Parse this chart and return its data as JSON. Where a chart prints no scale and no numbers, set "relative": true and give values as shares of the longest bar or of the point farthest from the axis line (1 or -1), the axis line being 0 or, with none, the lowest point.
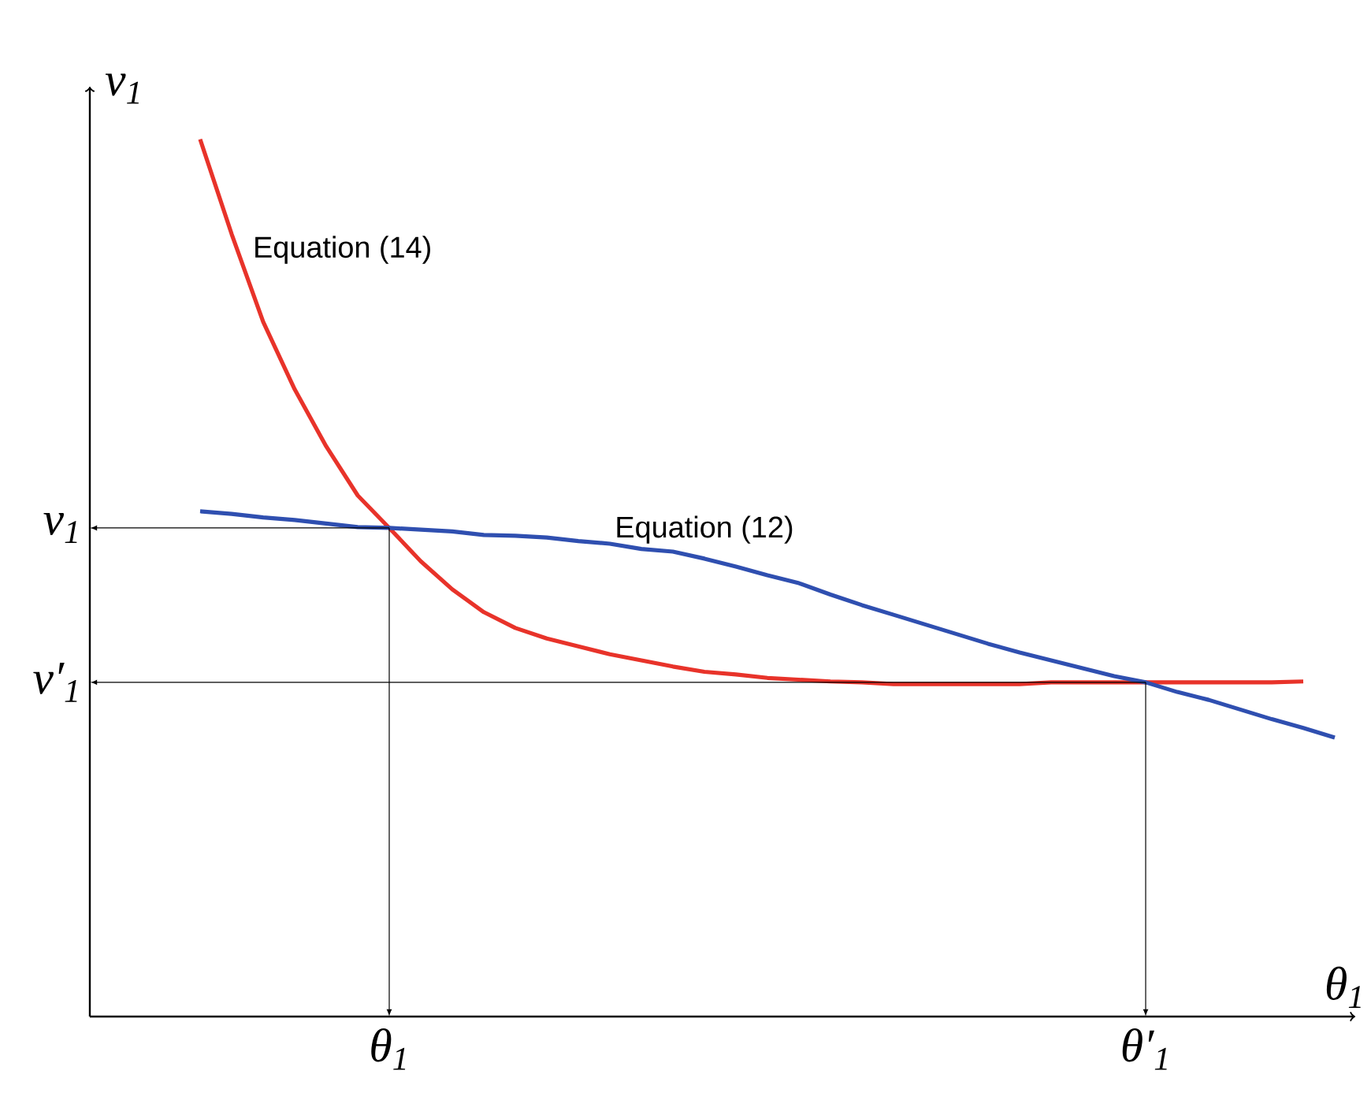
{
  "chart_data": {
    "type": "line",
    "relative": true,
    "legend": false,
    "xlabel": "θ$_{1}$",
    "ylabel": "v$_{1}$",
    "categories": [
      null,
      null,
      null,
      null,
      null,
      null,
      null,
      null,
      null,
      null,
      null,
      null,
      null,
      null,
      null,
      null,
      null,
      null,
      null,
      null,
      null,
      null,
      null,
      null,
      null,
      null,
      null,
      null,
      null,
      null,
      null,
      null,
      null,
      null,
      null,
      null,
      null
    ],
    "series": [
      {
        "name": "Equation (14)",
        "color": "#e8332a",
        "values": [
          1.0,
          0.892,
          0.792,
          0.715,
          0.65,
          0.594,
          0.557,
          0.519,
          0.487,
          0.461,
          0.443,
          0.431,
          0.422,
          0.413,
          0.406,
          0.399,
          0.393,
          0.39,
          0.386,
          0.384,
          0.382,
          0.381,
          0.379,
          0.379,
          0.379,
          0.379,
          0.379,
          0.381,
          0.381,
          0.381,
          0.381,
          0.381,
          0.381,
          0.381,
          0.381,
          0.382,
          null
        ]
      },
      {
        "name": "Equation (12)",
        "color": "#2f4fb0",
        "values": [
          0.576,
          0.573,
          0.569,
          0.566,
          0.562,
          0.558,
          0.557,
          0.555,
          0.553,
          0.549,
          0.548,
          0.546,
          0.542,
          0.539,
          0.533,
          0.53,
          0.522,
          0.513,
          0.503,
          0.494,
          0.481,
          0.469,
          0.458,
          0.447,
          0.436,
          0.425,
          0.415,
          0.406,
          0.397,
          0.388,
          0.381,
          0.37,
          0.361,
          0.35,
          0.339,
          0.329,
          0.318
        ]
      }
    ],
    "ref_lines": [
      {
        "axis": "y",
        "value": 0.557,
        "label": "v$_{1}$"
      },
      {
        "axis": "y",
        "value": 0.381,
        "label": "v′$_{1}$"
      }
    ],
    "annotations": [
      "θ$_{1}$",
      "θ′$_{1}$"
    ]
  }
}
